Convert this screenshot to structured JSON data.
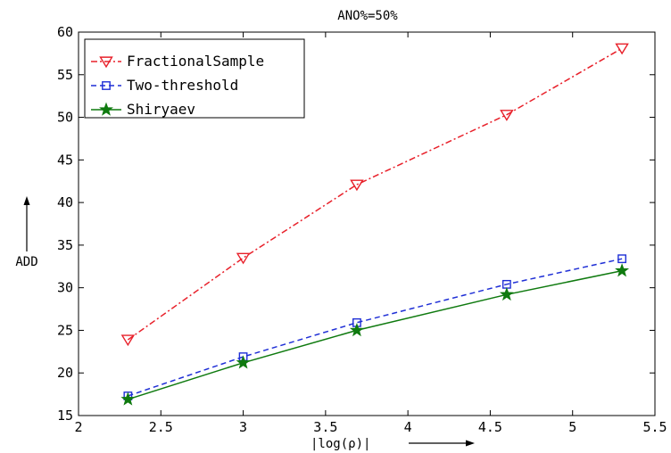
{
  "chart_data": {
    "type": "line",
    "title": "ANO%=50%",
    "xlabel": "|log(ρ)|",
    "ylabel": "ADD",
    "xlim": [
      2,
      5.5
    ],
    "ylim": [
      15,
      60
    ],
    "xticks": [
      2,
      2.5,
      3,
      3.5,
      4,
      4.5,
      5,
      5.5
    ],
    "yticks": [
      15,
      20,
      25,
      30,
      35,
      40,
      45,
      50,
      55,
      60
    ],
    "xtick_labels": [
      "2",
      "2.5",
      "3",
      "3.5",
      "4",
      "4.5",
      "5",
      "5.5"
    ],
    "ytick_labels": [
      "15",
      "20",
      "25",
      "30",
      "35",
      "40",
      "45",
      "50",
      "55",
      "60"
    ],
    "grid": false,
    "legend_position": "top-left",
    "x": [
      2.3,
      3.0,
      3.69,
      4.6,
      5.3
    ],
    "series": [
      {
        "name": "FractionalSample",
        "values": [
          23.9,
          33.5,
          42.1,
          50.3,
          58.1
        ],
        "color": "#e8202a",
        "line_style": "dash-dot",
        "marker": "triangle-down"
      },
      {
        "name": "Two-threshold",
        "values": [
          17.3,
          21.9,
          25.9,
          30.4,
          33.4
        ],
        "color": "#1f2fd6",
        "line_style": "dashed",
        "marker": "square"
      },
      {
        "name": "Shiryaev",
        "values": [
          16.9,
          21.2,
          25.0,
          29.2,
          32.0
        ],
        "color": "#0f7a0f",
        "line_style": "solid",
        "marker": "star"
      }
    ]
  }
}
